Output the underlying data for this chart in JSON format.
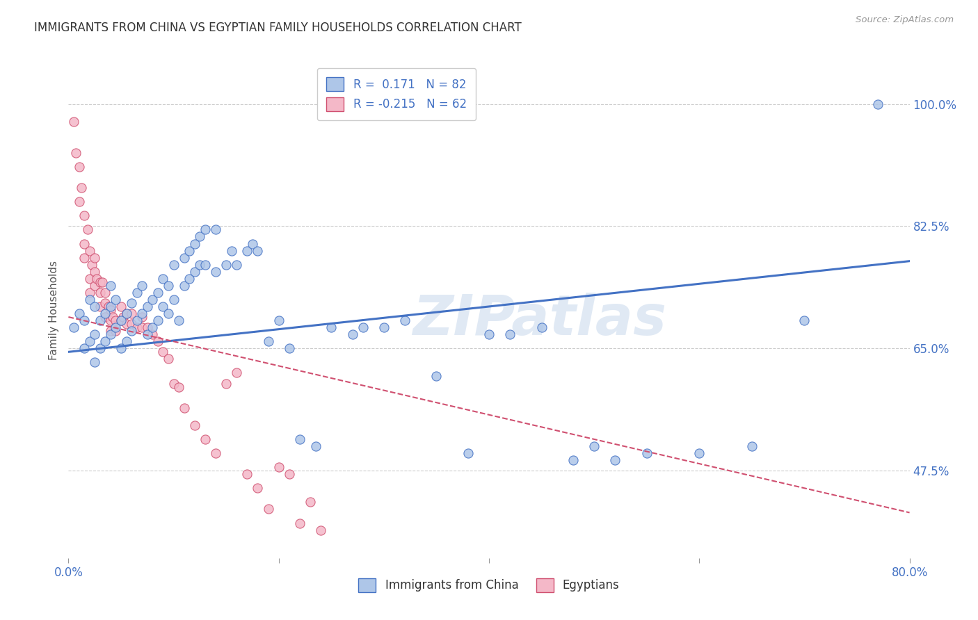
{
  "title": "IMMIGRANTS FROM CHINA VS EGYPTIAN FAMILY HOUSEHOLDS CORRELATION CHART",
  "source": "Source: ZipAtlas.com",
  "ylabel": "Family Households",
  "ytick_vals": [
    0.475,
    0.65,
    0.825,
    1.0
  ],
  "ytick_labels": [
    "47.5%",
    "65.0%",
    "82.5%",
    "100.0%"
  ],
  "xlim": [
    0.0,
    0.8
  ],
  "ylim": [
    0.35,
    1.06
  ],
  "china_color": "#aec6e8",
  "china_edge_color": "#4472c4",
  "egypt_color": "#f4b8c8",
  "egypt_edge_color": "#d05070",
  "china_R": 0.171,
  "china_N": 82,
  "egypt_R": -0.215,
  "egypt_N": 62,
  "legend_label_china": "Immigrants from China",
  "legend_label_egypt": "Egyptians",
  "watermark": "ZIPatlas",
  "background_color": "#ffffff",
  "grid_color": "#cccccc",
  "china_line_y0": 0.645,
  "china_line_y1": 0.775,
  "egypt_line_y0": 0.695,
  "egypt_line_y1": 0.415,
  "china_scatter_x": [
    0.005,
    0.01,
    0.015,
    0.015,
    0.02,
    0.02,
    0.025,
    0.025,
    0.025,
    0.03,
    0.03,
    0.035,
    0.035,
    0.04,
    0.04,
    0.04,
    0.045,
    0.045,
    0.05,
    0.05,
    0.055,
    0.055,
    0.06,
    0.06,
    0.065,
    0.065,
    0.07,
    0.07,
    0.075,
    0.075,
    0.08,
    0.08,
    0.085,
    0.085,
    0.09,
    0.09,
    0.095,
    0.095,
    0.1,
    0.1,
    0.105,
    0.11,
    0.11,
    0.115,
    0.115,
    0.12,
    0.12,
    0.125,
    0.125,
    0.13,
    0.13,
    0.14,
    0.14,
    0.15,
    0.155,
    0.16,
    0.17,
    0.175,
    0.18,
    0.19,
    0.2,
    0.21,
    0.22,
    0.235,
    0.25,
    0.27,
    0.28,
    0.3,
    0.32,
    0.35,
    0.38,
    0.4,
    0.42,
    0.45,
    0.48,
    0.5,
    0.52,
    0.55,
    0.6,
    0.65,
    0.7,
    0.77
  ],
  "china_scatter_y": [
    0.68,
    0.7,
    0.65,
    0.69,
    0.66,
    0.72,
    0.63,
    0.67,
    0.71,
    0.65,
    0.69,
    0.66,
    0.7,
    0.67,
    0.71,
    0.74,
    0.68,
    0.72,
    0.65,
    0.69,
    0.66,
    0.7,
    0.675,
    0.715,
    0.69,
    0.73,
    0.7,
    0.74,
    0.67,
    0.71,
    0.68,
    0.72,
    0.69,
    0.73,
    0.71,
    0.75,
    0.7,
    0.74,
    0.72,
    0.77,
    0.69,
    0.78,
    0.74,
    0.79,
    0.75,
    0.76,
    0.8,
    0.77,
    0.81,
    0.77,
    0.82,
    0.76,
    0.82,
    0.77,
    0.79,
    0.77,
    0.79,
    0.8,
    0.79,
    0.66,
    0.69,
    0.65,
    0.52,
    0.51,
    0.68,
    0.67,
    0.68,
    0.68,
    0.69,
    0.61,
    0.5,
    0.67,
    0.67,
    0.68,
    0.49,
    0.51,
    0.49,
    0.5,
    0.5,
    0.51,
    0.69,
    1.0
  ],
  "egypt_scatter_x": [
    0.005,
    0.007,
    0.01,
    0.01,
    0.012,
    0.015,
    0.015,
    0.015,
    0.018,
    0.02,
    0.02,
    0.02,
    0.022,
    0.025,
    0.025,
    0.025,
    0.027,
    0.03,
    0.03,
    0.03,
    0.032,
    0.035,
    0.035,
    0.035,
    0.038,
    0.04,
    0.04,
    0.04,
    0.042,
    0.045,
    0.045,
    0.05,
    0.05,
    0.052,
    0.055,
    0.055,
    0.06,
    0.06,
    0.065,
    0.07,
    0.07,
    0.075,
    0.08,
    0.085,
    0.09,
    0.095,
    0.1,
    0.105,
    0.11,
    0.12,
    0.13,
    0.14,
    0.15,
    0.16,
    0.17,
    0.18,
    0.19,
    0.2,
    0.21,
    0.22,
    0.23,
    0.24
  ],
  "egypt_scatter_y": [
    0.975,
    0.93,
    0.91,
    0.86,
    0.88,
    0.84,
    0.8,
    0.78,
    0.82,
    0.79,
    0.75,
    0.73,
    0.77,
    0.78,
    0.76,
    0.74,
    0.75,
    0.745,
    0.73,
    0.71,
    0.745,
    0.73,
    0.715,
    0.695,
    0.71,
    0.705,
    0.69,
    0.675,
    0.695,
    0.69,
    0.675,
    0.71,
    0.69,
    0.695,
    0.7,
    0.685,
    0.7,
    0.685,
    0.68,
    0.695,
    0.68,
    0.68,
    0.67,
    0.66,
    0.645,
    0.635,
    0.6,
    0.595,
    0.565,
    0.54,
    0.52,
    0.5,
    0.6,
    0.615,
    0.47,
    0.45,
    0.42,
    0.48,
    0.47,
    0.4,
    0.43,
    0.39
  ]
}
